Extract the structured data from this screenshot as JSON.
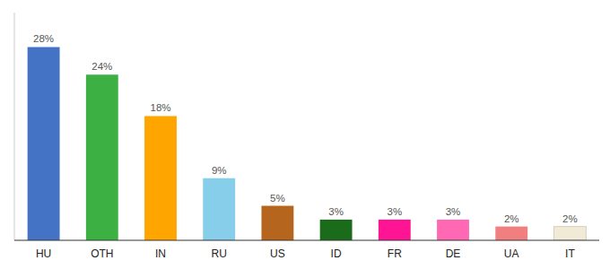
{
  "chart_data": {
    "type": "bar",
    "categories": [
      "HU",
      "OTH",
      "IN",
      "RU",
      "US",
      "ID",
      "FR",
      "DE",
      "UA",
      "IT"
    ],
    "values": [
      28,
      24,
      18,
      9,
      5,
      3,
      3,
      3,
      2,
      2
    ],
    "colors": [
      "#4472c4",
      "#3cb043",
      "#ffa500",
      "#87ceeb",
      "#b5651d",
      "#1a6b1a",
      "#ff1493",
      "#ff69b4",
      "#f08080",
      "#f0ead6"
    ],
    "ylim": [
      0,
      33
    ],
    "data_labels": true,
    "value_labels": [
      "28%",
      "24%",
      "18%",
      "9%",
      "5%",
      "3%",
      "3%",
      "3%",
      "2%",
      "2%"
    ],
    "tick_labels": "x",
    "grid": false
  }
}
